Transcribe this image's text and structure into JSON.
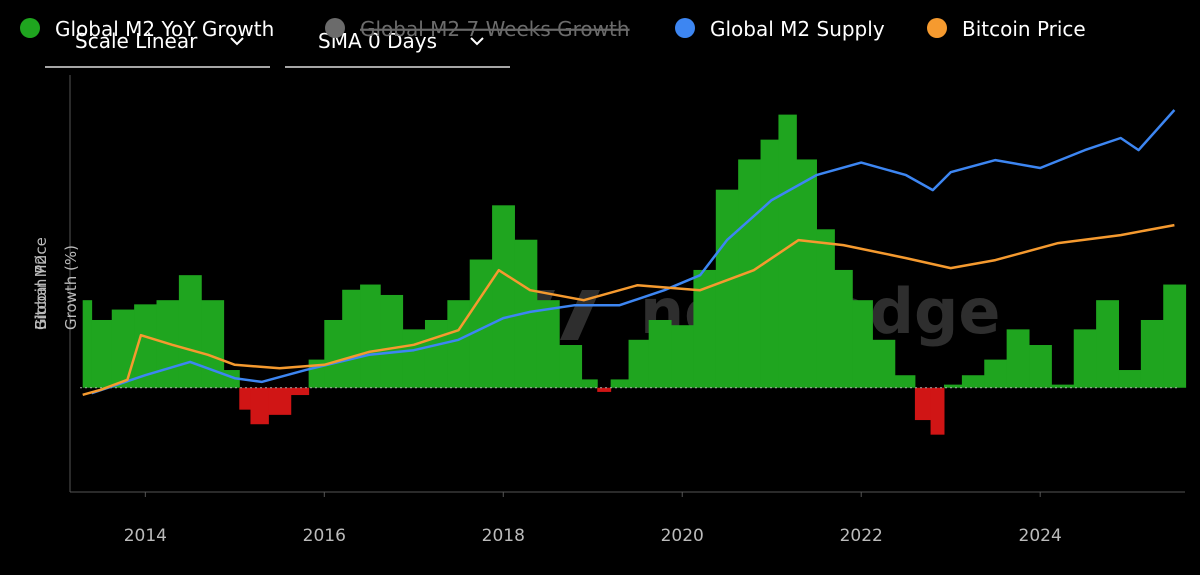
{
  "chart_data": {
    "type": "combo",
    "controls": [
      "Scale Linear",
      "SMA 0 Days"
    ],
    "watermark": "newhedge",
    "y_label": [
      "Global M2",
      "Growth (%)"
    ],
    "y2_label": "Bitcoin Price",
    "xlim": [
      2013.27,
      2025.54
    ],
    "xticks": [
      2014,
      2016,
      2018,
      2020,
      2022,
      2024
    ],
    "ylim": [
      -10,
      30
    ],
    "y2lim": [
      0,
      100
    ],
    "hidden_series": [
      {
        "name": "Global M2 7 Weeks Growth",
        "color": "#6b6b6b"
      }
    ],
    "series": [
      {
        "name": "Global M2 YoY Growth",
        "type": "bar",
        "color": "#1fa51f",
        "negative_color": "#d01515",
        "x": [
          2013.3,
          2013.5,
          2013.75,
          2014.0,
          2014.25,
          2014.5,
          2014.75,
          2015.0,
          2015.1,
          2015.25,
          2015.5,
          2015.75,
          2015.9,
          2016.1,
          2016.3,
          2016.5,
          2016.75,
          2017.0,
          2017.25,
          2017.5,
          2017.75,
          2018.0,
          2018.25,
          2018.5,
          2018.75,
          2019.0,
          2019.1,
          2019.3,
          2019.5,
          2019.75,
          2020.0,
          2020.25,
          2020.5,
          2020.75,
          2021.0,
          2021.15,
          2021.4,
          2021.6,
          2021.8,
          2022.0,
          2022.25,
          2022.5,
          2022.7,
          2022.85,
          2023.0,
          2023.25,
          2023.5,
          2023.75,
          2024.0,
          2024.25,
          2024.5,
          2024.75,
          2025.0,
          2025.25,
          2025.5
        ],
        "values": [
          8.4,
          6.5,
          7.5,
          8,
          8.4,
          10.8,
          8.4,
          1.7,
          -2.1,
          -3.5,
          -2.6,
          -0.7,
          2.7,
          6.5,
          9.4,
          9.9,
          8.9,
          5.6,
          6.5,
          8.4,
          12.3,
          17.5,
          14.2,
          8.4,
          4.1,
          0.8,
          -0.4,
          0.8,
          4.6,
          6.5,
          6,
          11.3,
          19,
          21.9,
          23.8,
          26.2,
          21.9,
          15.2,
          11.3,
          8.4,
          4.6,
          1.2,
          -3.1,
          -4.5,
          0.3,
          1.2,
          2.7,
          5.6,
          4.1,
          0.3,
          5.6,
          8.4,
          1.7,
          6.5,
          9.9
        ]
      },
      {
        "name": "Global M2 Supply",
        "type": "line",
        "axis": "y2",
        "color": "#3d86f2",
        "x": [
          2013.4,
          2014.0,
          2014.5,
          2015.0,
          2015.3,
          2015.8,
          2016.5,
          2017.0,
          2017.5,
          2018.0,
          2018.3,
          2018.8,
          2019.3,
          2019.8,
          2020.2,
          2020.5,
          2021.0,
          2021.5,
          2022.0,
          2022.5,
          2022.8,
          2023.0,
          2023.5,
          2024.0,
          2024.5,
          2024.9,
          2025.1,
          2025.5
        ],
        "values": [
          23.7,
          28,
          31.2,
          27.3,
          26.4,
          29.3,
          32.9,
          34,
          36.5,
          41.7,
          43.2,
          44.8,
          44.8,
          48.4,
          52,
          60.4,
          70,
          76,
          79,
          76,
          72.4,
          76.7,
          79.6,
          77.7,
          82,
          84.9,
          82,
          91.6
        ]
      },
      {
        "name": "Bitcoin Price",
        "type": "line",
        "axis": "y2",
        "color": "#f59a2f",
        "x": [
          2013.3,
          2013.5,
          2013.8,
          2013.95,
          2014.3,
          2014.7,
          2015.0,
          2015.5,
          2016.0,
          2016.5,
          2017.0,
          2017.5,
          2017.95,
          2018.3,
          2018.9,
          2019.5,
          2020.2,
          2020.8,
          2021.3,
          2021.8,
          2022.5,
          2023.0,
          2023.5,
          2024.2,
          2024.9,
          2025.5
        ],
        "values": [
          23.3,
          24.5,
          26.9,
          37.6,
          35.3,
          32.9,
          30.5,
          29.7,
          30.5,
          33.6,
          35.3,
          38.8,
          53.2,
          48.4,
          46,
          49.6,
          48.4,
          53.2,
          60.4,
          59.2,
          56.1,
          53.7,
          55.6,
          59.7,
          61.6,
          64
        ]
      }
    ]
  }
}
